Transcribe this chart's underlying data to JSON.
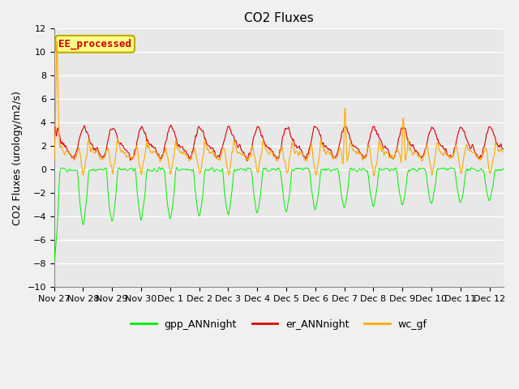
{
  "title": "CO2 Fluxes",
  "ylabel": "CO2 Fluxes (urology/m2/s)",
  "ylim": [
    -10,
    12
  ],
  "yticks": [
    -10,
    -8,
    -6,
    -4,
    -2,
    0,
    2,
    4,
    6,
    8,
    10,
    12
  ],
  "xtick_labels": [
    "Nov 27",
    "Nov 28",
    "Nov 29",
    "Nov 30",
    "Dec 1",
    "Dec 2",
    "Dec 3",
    "Dec 4",
    "Dec 5",
    "Dec 6",
    "Dec 7",
    "Dec 8",
    "Dec 9",
    "Dec 10",
    "Dec 11",
    "Dec 12"
  ],
  "annotation_text": "EE_processed",
  "annotation_color": "#cc0000",
  "annotation_box_facecolor": "#ffff88",
  "annotation_box_edgecolor": "#bbaa00",
  "gpp_color": "#00ee00",
  "er_color": "#dd0000",
  "wc_color": "#ffaa00",
  "bg_color": "#e8e8e8",
  "grid_color": "#ffffff",
  "fig_bg": "#f0f0f0",
  "legend_labels": [
    "gpp_ANNnight",
    "er_ANNnight",
    "wc_gf"
  ],
  "title_fontsize": 11,
  "ylabel_fontsize": 9,
  "tick_fontsize": 8,
  "legend_fontsize": 9
}
